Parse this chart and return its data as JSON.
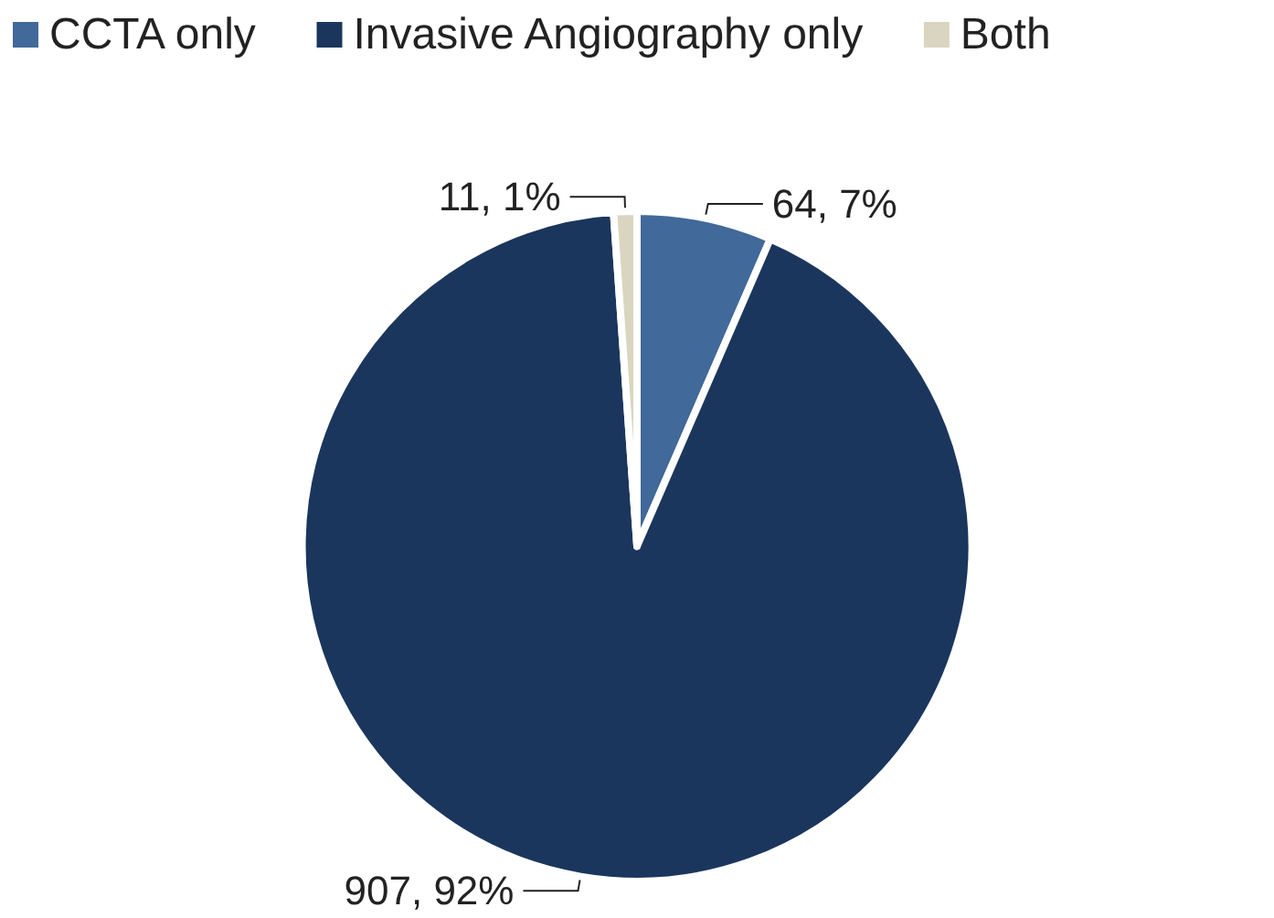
{
  "chart_data": {
    "type": "pie",
    "categories": [
      "CCTA only",
      "Invasive Angiography only",
      "Both"
    ],
    "values": [
      64,
      907,
      11
    ],
    "colors": [
      "#41699a",
      "#1b365d",
      "#d9d5c0"
    ],
    "value_labels": [
      "64, 7%",
      "907, 92%",
      "11, 1%"
    ],
    "legend": "top left"
  }
}
